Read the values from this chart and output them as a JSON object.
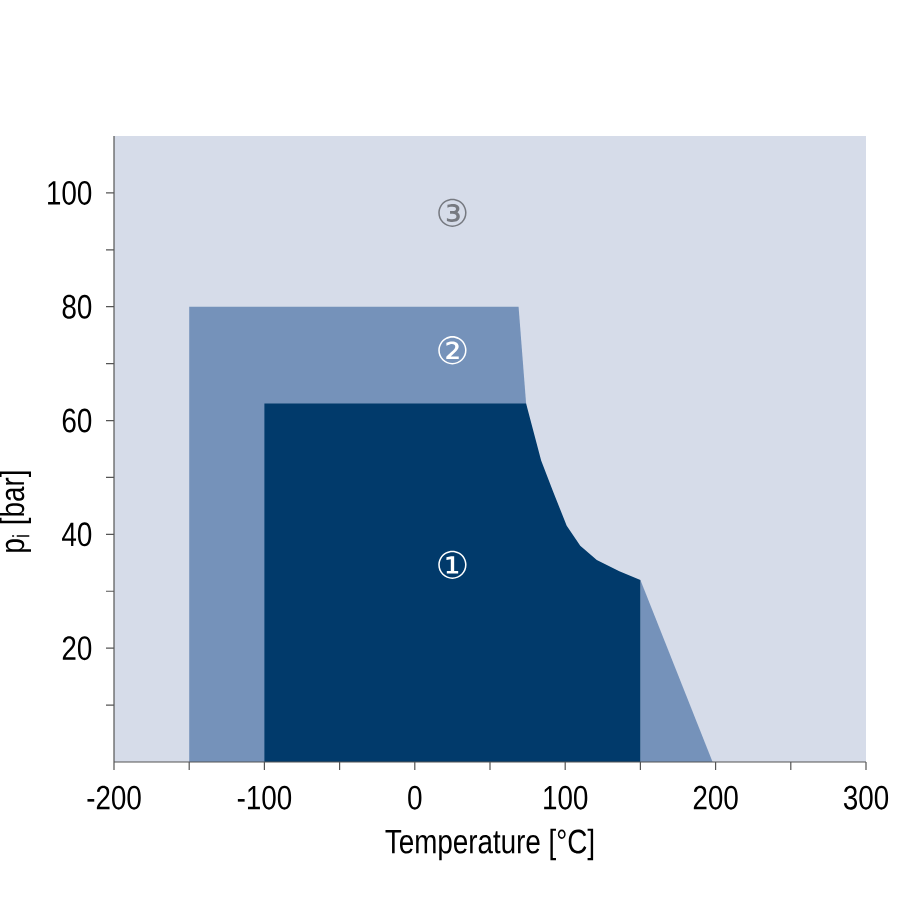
{
  "chart_data": {
    "type": "area",
    "xlabel": "Temperature [°C]",
    "ylabel": "p$_{i}$ [bar]",
    "xlim": [
      -200,
      300
    ],
    "ylim": [
      0,
      110
    ],
    "xticks": [
      -200,
      {
        "value": -150,
        "label": null
      },
      -100,
      {
        "value": -50,
        "label": null
      },
      0,
      {
        "value": 50,
        "label": null
      },
      100,
      {
        "value": 150,
        "label": null
      },
      200,
      {
        "value": 250,
        "label": null
      },
      300
    ],
    "yticks": [
      {
        "value": 10,
        "label": null
      },
      20,
      {
        "value": 30,
        "label": null
      },
      40,
      {
        "value": 50,
        "label": null
      },
      60,
      {
        "value": 70,
        "label": null
      },
      80,
      {
        "value": 90,
        "label": null
      },
      100
    ],
    "bands": [
      {
        "axis": "x",
        "from": -200,
        "to": 300,
        "label": "③",
        "color": "#d6dce9"
      }
    ],
    "series": [
      {
        "name": "②",
        "color": "#7592ba",
        "x": [
          -150,
          -150,
          69,
          74,
          79,
          84,
          92,
          101,
          110,
          121,
          136,
          150,
          198
        ],
        "values": [
          0,
          80,
          80,
          63,
          null,
          null,
          null,
          null,
          null,
          null,
          null,
          32,
          0
        ]
      },
      {
        "name": "①",
        "color": "#013a6b",
        "x": [
          -100,
          -100,
          74,
          79,
          84,
          92,
          101,
          110,
          121,
          136,
          150,
          150
        ],
        "values": [
          0,
          63,
          63,
          58,
          53,
          47.5,
          41.5,
          38,
          35.5,
          33.5,
          32,
          0
        ]
      }
    ]
  }
}
